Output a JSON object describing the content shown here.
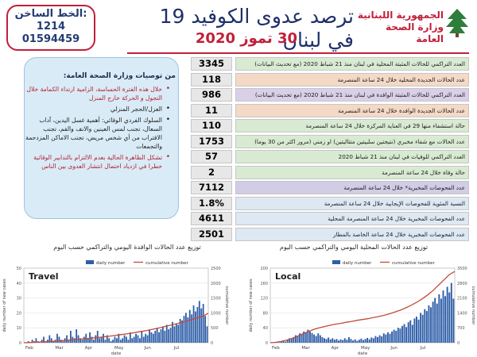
{
  "header": {
    "hotline_label": "الخط الساخن:",
    "hotline_1": "1214",
    "hotline_2": "01594459",
    "title": "ترصد عدوى الكوفيد 19 في لبنان",
    "date": "30 تموز 2020",
    "ministry_1": "الجمهورية اللبنانية",
    "ministry_2": "وزارة الصحة العامة"
  },
  "stats": [
    {
      "value": "3345",
      "label": "العدد التراكمي للحالات المثبتة المحلية في لبنان منذ 21 شباط 2020 (مع تحديث البيانات)",
      "bg": "#d9ead3"
    },
    {
      "value": "118",
      "label": "عدد الحالات الجديدة المحلية خلال 24 ساعة المنصرمة",
      "bg": "#f4d9c6"
    },
    {
      "value": "986",
      "label": "العدد التراكمي للحالات المثبتة الوافدة في لبنان منذ 21 شباط 2020 (مع تحديث البيانات)",
      "bg": "#d9d0e8"
    },
    {
      "value": "11",
      "label": "عدد الحالات الجديدة الوافدة خلال 24 ساعة المنصرمة",
      "bg": "#f4d9c6"
    },
    {
      "value": "110",
      "label": "حالة استشفاء منها 29 في العناية المركزة خلال 24 ساعة المنصرمة",
      "bg": "#d9ead3"
    },
    {
      "value": "1753",
      "label": "عدد الحالات مع شفاء مخبري (نتيجتين سلبيتين متتاليتين) او زمني (مرور اكثر من 30 يوما)",
      "bg": "#d9ead3"
    },
    {
      "value": "57",
      "label": "العدد التراكمي للوفيات في لبنان منذ 21 شباط 2020",
      "bg": "#d9ead3"
    },
    {
      "value": "2",
      "label": "حالة وفاة خلال 24 ساعة المنصرمة",
      "bg": "#d9ead3"
    },
    {
      "value": "7112",
      "label": "عدد الفحوصات المخبرية* خلال 24 ساعة المنصرمة",
      "bg": "#d2cce4"
    },
    {
      "value": "1.8%",
      "label": "النسبة المئوية للفحوصات الإيجابية خلال 24 ساعة المنصرمة",
      "bg": "#dde8f3"
    },
    {
      "value": "4611",
      "label": "عدد الفحوصات المخبرية خلال 24 ساعة المنصرمة المحلية",
      "bg": "#dde8f3"
    },
    {
      "value": "2501",
      "label": "عدد الفحوصات المخبرية خلال 24 ساعة الخاصة بالمطار",
      "bg": "#dde8f3"
    }
  ],
  "recommendations": {
    "title": "من توصيات وزارة الصحة العامة:",
    "items": [
      {
        "text": "خلال هذه الفترة الحساسة، الزامية ارتداء الكمامة خلال التجول و الحركة خارج المنزل",
        "style": "red"
      },
      {
        "text": "العزل/الحجر المنزلي",
        "style": "dark"
      },
      {
        "text": "السلوك الفردي الوقائي: أهمية غسل اليدين، آداب السعال، تجنب لمس العينين والانف والفم، تجنب الاقتراب من أي شخص مريض، تجنب الاماكن المزدحمة والتجمعات",
        "style": "dark"
      },
      {
        "text": "تشكل الظاهرة الحالية بعدم الالتزام بالتدابير الوقائية خطرا في ازدياد احتمال انتشار العدوى بين الناس",
        "style": "red"
      }
    ]
  },
  "chart_data": [
    {
      "type": "bar",
      "caption": "توزيع عدد الحالات الوافدة اليومي والتراكمي حسب اليوم",
      "title": "Travel",
      "legend": [
        "daily number",
        "cumulative number"
      ],
      "xlabel": "date",
      "ylabel_left": "daily number of new cases",
      "ylabel_right": "cumulative number",
      "xticks": [
        "Feb",
        "Mar",
        "Apr",
        "May",
        "Jun",
        "Jul"
      ],
      "ylim_left": [
        0,
        50
      ],
      "ylim_right": [
        0,
        2500
      ],
      "series": [
        {
          "name": "daily number",
          "values": [
            0,
            0,
            1,
            0,
            2,
            1,
            3,
            1,
            0,
            2,
            4,
            1,
            2,
            5,
            3,
            1,
            2,
            6,
            4,
            2,
            1,
            3,
            5,
            2,
            8,
            4,
            3,
            9,
            5,
            3,
            2,
            4,
            6,
            3,
            7,
            4,
            2,
            5,
            8,
            3,
            4,
            6,
            2,
            5,
            3,
            1,
            2,
            4,
            3,
            6,
            2,
            3,
            5,
            4,
            2,
            7,
            3,
            4,
            6,
            5,
            3,
            8,
            4,
            6,
            5,
            9,
            7,
            6,
            8,
            10,
            7,
            9,
            11,
            8,
            12,
            9,
            10,
            14,
            11,
            13,
            12,
            16,
            15,
            18,
            20,
            17,
            22,
            19,
            25,
            21,
            24,
            28,
            23,
            26,
            18,
            11
          ]
        },
        {
          "name": "cumulative number",
          "values": [
            0,
            5,
            12,
            20,
            28,
            40,
            52,
            65,
            78,
            92,
            106,
            120,
            135,
            150,
            168,
            185,
            205,
            225,
            248,
            270,
            295,
            320,
            350,
            380,
            410,
            445,
            480,
            520,
            560,
            600,
            645,
            690,
            740,
            790,
            845,
            900,
            986
          ]
        }
      ]
    },
    {
      "type": "bar",
      "caption": "توزيع عدد الحالات المحلية اليومي والتراكمي حسب اليوم",
      "title": "Local",
      "legend": [
        "daily number",
        "cumulative number"
      ],
      "xlabel": "date",
      "ylabel_left": "daily number of new cases",
      "ylabel_right": "cumulative number",
      "xticks": [
        "Feb",
        "Mar",
        "Apr",
        "May",
        "Jun",
        "Jul"
      ],
      "ylim_left": [
        0,
        200
      ],
      "ylim_right": [
        0,
        3500
      ],
      "series": [
        {
          "name": "daily number",
          "values": [
            1,
            0,
            2,
            3,
            1,
            4,
            6,
            3,
            8,
            12,
            10,
            15,
            20,
            18,
            25,
            22,
            30,
            28,
            35,
            30,
            26,
            22,
            18,
            25,
            20,
            15,
            12,
            10,
            14,
            9,
            12,
            8,
            10,
            6,
            9,
            7,
            12,
            8,
            15,
            10,
            6,
            9,
            5,
            8,
            11,
            7,
            10,
            13,
            9,
            14,
            12,
            18,
            15,
            20,
            17,
            25,
            22,
            28,
            24,
            30,
            35,
            32,
            40,
            38,
            45,
            50,
            42,
            55,
            60,
            48,
            65,
            70,
            62,
            80,
            75,
            90,
            85,
            100,
            95,
            110,
            120,
            105,
            130,
            118,
            140,
            125,
            150,
            135,
            160,
            118
          ]
        },
        {
          "name": "cumulative number",
          "values": [
            0,
            20,
            60,
            120,
            200,
            300,
            420,
            520,
            620,
            700,
            760,
            820,
            870,
            910,
            960,
            1000,
            1050,
            1090,
            1130,
            1180,
            1230,
            1290,
            1360,
            1440,
            1530,
            1640,
            1760,
            1900,
            2060,
            2240,
            2450,
            2700,
            2950,
            3200,
            3345
          ]
        }
      ]
    }
  ],
  "colors": {
    "title": "#1f2f6a",
    "accent": "#c11f3a",
    "bar": "#2f5ea8",
    "line": "#c24b3a"
  }
}
